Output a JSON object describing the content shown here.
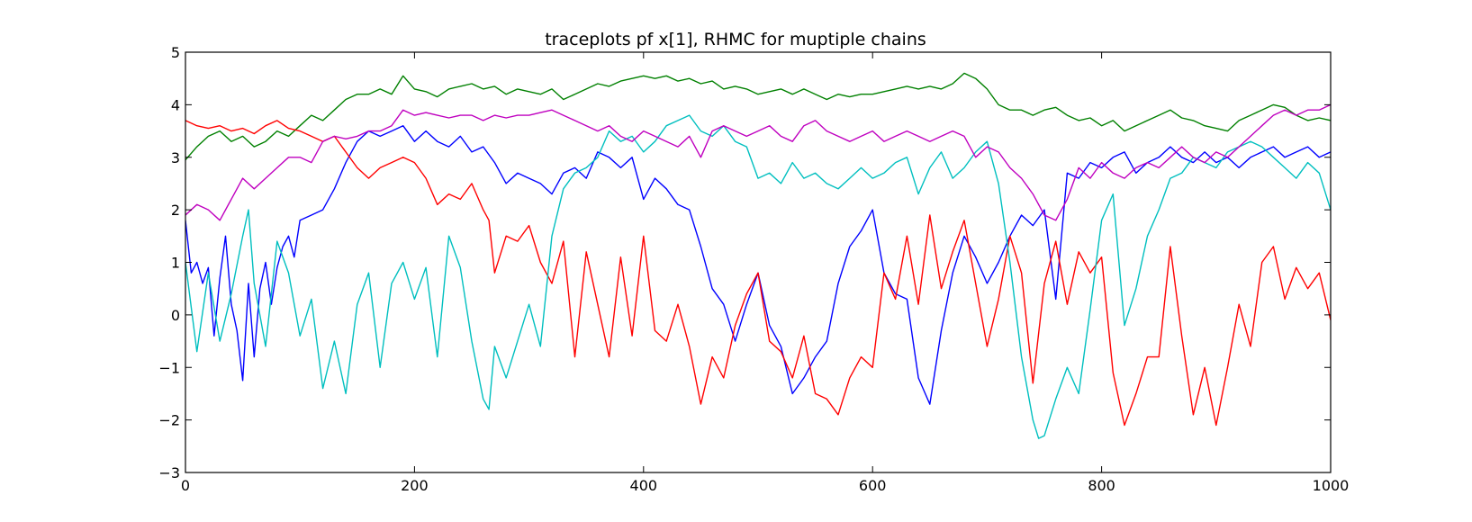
{
  "chart_data": {
    "type": "line",
    "title": "traceplots pf x[1], RHMC for muptiple chains",
    "xlabel": "",
    "ylabel": "",
    "xlim": [
      0,
      1000
    ],
    "ylim": [
      -3,
      5
    ],
    "xticks": [
      0,
      200,
      400,
      600,
      800,
      1000
    ],
    "yticks": [
      -3,
      -2,
      -1,
      0,
      1,
      2,
      3,
      4,
      5
    ],
    "xtick_labels": [
      "0",
      "200",
      "400",
      "600",
      "800",
      "1000"
    ],
    "ytick_labels": [
      "−3",
      "−2",
      "−1",
      "0",
      "1",
      "2",
      "3",
      "4",
      "5"
    ],
    "grid": false,
    "legend": "none",
    "series": [
      {
        "color": "#0000ff",
        "x": [
          0,
          5,
          10,
          15,
          20,
          25,
          30,
          35,
          40,
          45,
          50,
          55,
          60,
          65,
          70,
          75,
          80,
          85,
          90,
          95,
          100,
          110,
          120,
          130,
          140,
          150,
          160,
          170,
          180,
          190,
          200,
          210,
          220,
          230,
          240,
          250,
          260,
          270,
          280,
          290,
          300,
          310,
          320,
          330,
          340,
          350,
          360,
          370,
          380,
          390,
          400,
          410,
          420,
          430,
          440,
          450,
          460,
          470,
          480,
          490,
          500,
          510,
          520,
          530,
          540,
          550,
          560,
          570,
          580,
          590,
          600,
          610,
          620,
          630,
          640,
          650,
          660,
          670,
          680,
          690,
          700,
          710,
          720,
          730,
          740,
          750,
          760,
          770,
          780,
          790,
          800,
          810,
          820,
          830,
          840,
          850,
          860,
          870,
          880,
          890,
          900,
          910,
          920,
          930,
          940,
          950,
          960,
          970,
          980,
          990,
          1000
        ],
        "y": [
          1.8,
          0.8,
          1.0,
          0.6,
          0.9,
          -0.4,
          0.7,
          1.5,
          0.2,
          -0.3,
          -1.25,
          0.6,
          -0.8,
          0.5,
          1.0,
          0.2,
          0.9,
          1.3,
          1.5,
          1.1,
          1.8,
          1.9,
          2.0,
          2.4,
          2.9,
          3.3,
          3.5,
          3.4,
          3.5,
          3.6,
          3.3,
          3.5,
          3.3,
          3.2,
          3.4,
          3.1,
          3.2,
          2.9,
          2.5,
          2.7,
          2.6,
          2.5,
          2.3,
          2.7,
          2.8,
          2.6,
          3.1,
          3.0,
          2.8,
          3.0,
          2.2,
          2.6,
          2.4,
          2.1,
          2.0,
          1.3,
          0.5,
          0.2,
          -0.5,
          0.2,
          0.8,
          -0.2,
          -0.6,
          -1.5,
          -1.2,
          -0.8,
          -0.5,
          0.6,
          1.3,
          1.6,
          2.0,
          0.8,
          0.4,
          0.3,
          -1.2,
          -1.7,
          -0.3,
          0.8,
          1.5,
          1.1,
          0.6,
          1.0,
          1.5,
          1.9,
          1.7,
          2.0,
          0.3,
          2.7,
          2.6,
          2.9,
          2.8,
          3.0,
          3.1,
          2.7,
          2.9,
          3.0,
          3.2,
          3.0,
          2.9,
          3.1,
          2.9,
          3.0,
          2.8,
          3.0,
          3.1,
          3.2,
          3.0,
          3.1,
          3.2,
          3.0,
          3.1
        ]
      },
      {
        "color": "#008000",
        "x": [
          0,
          10,
          20,
          30,
          40,
          50,
          60,
          70,
          80,
          90,
          100,
          110,
          120,
          130,
          140,
          150,
          160,
          170,
          180,
          190,
          200,
          210,
          220,
          230,
          240,
          250,
          260,
          270,
          280,
          290,
          300,
          310,
          320,
          330,
          340,
          350,
          360,
          370,
          380,
          390,
          400,
          410,
          420,
          430,
          440,
          450,
          460,
          470,
          480,
          490,
          500,
          510,
          520,
          530,
          540,
          550,
          560,
          570,
          580,
          590,
          600,
          610,
          620,
          630,
          640,
          650,
          660,
          670,
          680,
          690,
          700,
          710,
          720,
          730,
          740,
          750,
          760,
          770,
          780,
          790,
          800,
          810,
          820,
          830,
          840,
          850,
          860,
          870,
          880,
          890,
          900,
          910,
          920,
          930,
          940,
          950,
          960,
          970,
          980,
          990,
          1000
        ],
        "y": [
          2.95,
          3.2,
          3.4,
          3.5,
          3.3,
          3.4,
          3.2,
          3.3,
          3.5,
          3.4,
          3.6,
          3.8,
          3.7,
          3.9,
          4.1,
          4.2,
          4.2,
          4.3,
          4.2,
          4.55,
          4.3,
          4.25,
          4.15,
          4.3,
          4.35,
          4.4,
          4.3,
          4.35,
          4.2,
          4.3,
          4.25,
          4.2,
          4.3,
          4.1,
          4.2,
          4.3,
          4.4,
          4.35,
          4.45,
          4.5,
          4.55,
          4.5,
          4.55,
          4.45,
          4.5,
          4.4,
          4.45,
          4.3,
          4.35,
          4.3,
          4.2,
          4.25,
          4.3,
          4.2,
          4.3,
          4.2,
          4.1,
          4.2,
          4.15,
          4.2,
          4.2,
          4.25,
          4.3,
          4.35,
          4.3,
          4.35,
          4.3,
          4.4,
          4.6,
          4.5,
          4.3,
          4.0,
          3.9,
          3.9,
          3.8,
          3.9,
          3.95,
          3.8,
          3.7,
          3.75,
          3.6,
          3.7,
          3.5,
          3.6,
          3.7,
          3.8,
          3.9,
          3.75,
          3.7,
          3.6,
          3.55,
          3.5,
          3.7,
          3.8,
          3.9,
          4.0,
          3.95,
          3.8,
          3.7,
          3.75,
          3.7
        ]
      },
      {
        "color": "#ff0000",
        "x": [
          0,
          10,
          20,
          30,
          40,
          50,
          60,
          70,
          80,
          90,
          100,
          110,
          120,
          130,
          140,
          150,
          160,
          170,
          180,
          190,
          200,
          210,
          220,
          230,
          240,
          250,
          260,
          265,
          270,
          280,
          290,
          300,
          310,
          320,
          330,
          340,
          350,
          360,
          370,
          380,
          390,
          400,
          410,
          420,
          430,
          440,
          450,
          460,
          470,
          480,
          490,
          500,
          510,
          520,
          530,
          540,
          550,
          560,
          570,
          580,
          590,
          600,
          610,
          620,
          630,
          640,
          650,
          660,
          670,
          680,
          690,
          700,
          710,
          720,
          730,
          740,
          750,
          760,
          770,
          780,
          790,
          800,
          810,
          820,
          830,
          840,
          850,
          860,
          870,
          880,
          890,
          900,
          910,
          920,
          930,
          940,
          950,
          960,
          970,
          980,
          990,
          1000
        ],
        "y": [
          3.7,
          3.6,
          3.55,
          3.6,
          3.5,
          3.55,
          3.45,
          3.6,
          3.7,
          3.55,
          3.5,
          3.4,
          3.3,
          3.4,
          3.1,
          2.8,
          2.6,
          2.8,
          2.9,
          3.0,
          2.9,
          2.6,
          2.1,
          2.3,
          2.2,
          2.5,
          2.0,
          1.8,
          0.8,
          1.5,
          1.4,
          1.7,
          1.0,
          0.6,
          1.4,
          -0.8,
          1.2,
          0.2,
          -0.8,
          1.1,
          -0.4,
          1.5,
          -0.3,
          -0.5,
          0.2,
          -0.6,
          -1.7,
          -0.8,
          -1.2,
          -0.2,
          0.4,
          0.8,
          -0.5,
          -0.7,
          -1.2,
          -0.4,
          -1.5,
          -1.6,
          -1.9,
          -1.2,
          -0.8,
          -1.0,
          0.8,
          0.3,
          1.5,
          0.2,
          1.9,
          0.5,
          1.2,
          1.8,
          0.6,
          -0.6,
          0.3,
          1.5,
          0.8,
          -1.3,
          0.6,
          1.4,
          0.2,
          1.2,
          0.8,
          1.1,
          -1.1,
          -2.1,
          -1.5,
          -0.8,
          -0.8,
          1.3,
          -0.4,
          -1.9,
          -1.0,
          -2.1,
          -1.0,
          0.2,
          -0.6,
          1.0,
          1.3,
          0.3,
          0.9,
          0.5,
          0.8,
          -0.1
        ]
      },
      {
        "color": "#00bfbf",
        "x": [
          0,
          10,
          20,
          30,
          40,
          50,
          55,
          60,
          70,
          80,
          90,
          100,
          110,
          120,
          130,
          140,
          150,
          160,
          170,
          180,
          190,
          200,
          210,
          220,
          230,
          240,
          250,
          260,
          265,
          270,
          280,
          290,
          300,
          310,
          320,
          330,
          340,
          350,
          360,
          370,
          380,
          390,
          400,
          410,
          420,
          430,
          440,
          450,
          460,
          470,
          480,
          490,
          500,
          510,
          520,
          530,
          540,
          550,
          560,
          570,
          580,
          590,
          600,
          610,
          620,
          630,
          640,
          650,
          660,
          670,
          680,
          690,
          700,
          710,
          720,
          730,
          740,
          745,
          750,
          760,
          770,
          780,
          790,
          800,
          810,
          820,
          830,
          840,
          850,
          860,
          870,
          880,
          890,
          900,
          910,
          920,
          930,
          940,
          950,
          960,
          970,
          980,
          990,
          1000
        ],
        "y": [
          1.0,
          -0.7,
          0.8,
          -0.5,
          0.4,
          1.5,
          2.0,
          0.6,
          -0.6,
          1.4,
          0.8,
          -0.4,
          0.3,
          -1.4,
          -0.5,
          -1.5,
          0.2,
          0.8,
          -1.0,
          0.6,
          1.0,
          0.3,
          0.9,
          -0.8,
          1.5,
          0.9,
          -0.5,
          -1.6,
          -1.8,
          -0.6,
          -1.2,
          -0.5,
          0.2,
          -0.6,
          1.5,
          2.4,
          2.7,
          2.8,
          3.0,
          3.5,
          3.3,
          3.4,
          3.1,
          3.3,
          3.6,
          3.7,
          3.8,
          3.5,
          3.4,
          3.6,
          3.3,
          3.2,
          2.6,
          2.7,
          2.5,
          2.9,
          2.6,
          2.7,
          2.5,
          2.4,
          2.6,
          2.8,
          2.6,
          2.7,
          2.9,
          3.0,
          2.3,
          2.8,
          3.1,
          2.6,
          2.8,
          3.1,
          3.3,
          2.5,
          1.0,
          -0.8,
          -2.0,
          -2.35,
          -2.3,
          -1.6,
          -1.0,
          -1.5,
          0.1,
          1.8,
          2.3,
          -0.2,
          0.5,
          1.5,
          2.0,
          2.6,
          2.7,
          3.0,
          2.9,
          2.8,
          3.1,
          3.2,
          3.3,
          3.2,
          3.0,
          2.8,
          2.6,
          2.9,
          2.7,
          2.0
        ]
      },
      {
        "color": "#bf00bf",
        "x": [
          0,
          10,
          20,
          30,
          40,
          50,
          60,
          70,
          80,
          90,
          100,
          110,
          120,
          130,
          140,
          150,
          160,
          170,
          180,
          190,
          200,
          210,
          220,
          230,
          240,
          250,
          260,
          270,
          280,
          290,
          300,
          310,
          320,
          330,
          340,
          350,
          360,
          370,
          380,
          390,
          400,
          410,
          420,
          430,
          440,
          450,
          460,
          470,
          480,
          490,
          500,
          510,
          520,
          530,
          540,
          550,
          560,
          570,
          580,
          590,
          600,
          610,
          620,
          630,
          640,
          650,
          660,
          670,
          680,
          690,
          700,
          710,
          720,
          730,
          740,
          750,
          760,
          770,
          780,
          790,
          800,
          810,
          820,
          830,
          840,
          850,
          860,
          870,
          880,
          890,
          900,
          910,
          920,
          930,
          940,
          950,
          960,
          970,
          980,
          990,
          1000
        ],
        "y": [
          1.9,
          2.1,
          2.0,
          1.8,
          2.2,
          2.6,
          2.4,
          2.6,
          2.8,
          3.0,
          3.0,
          2.9,
          3.3,
          3.4,
          3.35,
          3.4,
          3.5,
          3.5,
          3.6,
          3.9,
          3.8,
          3.85,
          3.8,
          3.75,
          3.8,
          3.8,
          3.7,
          3.8,
          3.75,
          3.8,
          3.8,
          3.85,
          3.9,
          3.8,
          3.7,
          3.6,
          3.5,
          3.6,
          3.4,
          3.3,
          3.5,
          3.4,
          3.3,
          3.2,
          3.4,
          3.0,
          3.5,
          3.6,
          3.5,
          3.4,
          3.5,
          3.6,
          3.4,
          3.3,
          3.6,
          3.7,
          3.5,
          3.4,
          3.3,
          3.4,
          3.5,
          3.3,
          3.4,
          3.5,
          3.4,
          3.3,
          3.4,
          3.5,
          3.4,
          3.0,
          3.2,
          3.1,
          2.8,
          2.6,
          2.3,
          1.9,
          1.8,
          2.2,
          2.8,
          2.6,
          2.9,
          2.7,
          2.6,
          2.8,
          2.9,
          2.8,
          3.0,
          3.2,
          3.0,
          2.9,
          3.1,
          3.0,
          3.2,
          3.4,
          3.6,
          3.8,
          3.9,
          3.8,
          3.9,
          3.9,
          4.0
        ]
      }
    ]
  }
}
